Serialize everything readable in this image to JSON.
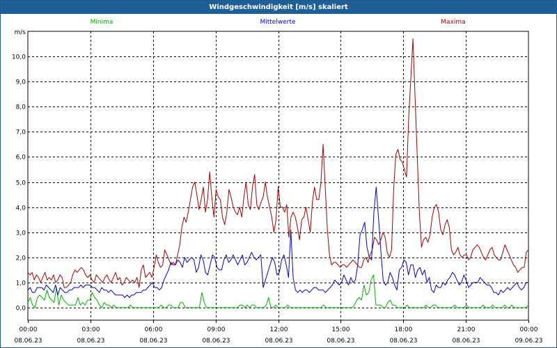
{
  "window": {
    "title": "Windgeschwindigkeit [m/s] skaliert"
  },
  "colors": {
    "title_bg": "#1f5f96",
    "minima": "#00b000",
    "mittelwerte": "#0000c8",
    "maxima": "#a00000",
    "grid": "#000000"
  },
  "chart_data": {
    "type": "line",
    "title": "Windgeschwindigkeit [m/s] skaliert",
    "ylabel": "m/s",
    "xlabel": "",
    "ylim": [
      -0.5,
      11.0
    ],
    "xlim": [
      0,
      24
    ],
    "grid": true,
    "yticks": [
      {
        "value": 0.0,
        "label": "0,0"
      },
      {
        "value": 1.0,
        "label": "1,0"
      },
      {
        "value": 2.0,
        "label": "2,0"
      },
      {
        "value": 3.0,
        "label": "3,0"
      },
      {
        "value": 4.0,
        "label": "4,0"
      },
      {
        "value": 5.0,
        "label": "5,0"
      },
      {
        "value": 6.0,
        "label": "6,0"
      },
      {
        "value": 7.0,
        "label": "7,0"
      },
      {
        "value": 8.0,
        "label": "8,0"
      },
      {
        "value": 9.0,
        "label": "9,0"
      },
      {
        "value": 10.0,
        "label": "10,0"
      }
    ],
    "xticks": [
      {
        "value": 0,
        "time": "00:00",
        "date": "08.06.23"
      },
      {
        "value": 3,
        "time": "03:00",
        "date": "08.06.23"
      },
      {
        "value": 6,
        "time": "06:00",
        "date": "08.06.23"
      },
      {
        "value": 9,
        "time": "09:00",
        "date": "08.06.23"
      },
      {
        "value": 12,
        "time": "12:00",
        "date": "08.06.23"
      },
      {
        "value": 15,
        "time": "15:00",
        "date": "08.06.23"
      },
      {
        "value": 18,
        "time": "18:00",
        "date": "08.06.23"
      },
      {
        "value": 21,
        "time": "21:00",
        "date": "08.06.23"
      },
      {
        "value": 24,
        "time": "00:00",
        "date": "09.06.23"
      }
    ],
    "series": [
      {
        "name": "Minima",
        "color": "#00b000",
        "legend_position": "top-left",
        "values": [
          0.2,
          0.4,
          0.1,
          0.0,
          0.4,
          0.5,
          0.4,
          0.3,
          0.7,
          0.4,
          0.3,
          0.2,
          0.8,
          0.1,
          0.5,
          0.3,
          0.2,
          0.1,
          0.1,
          0.1,
          0.1,
          0.4,
          0.1,
          0.2,
          0.1,
          0.3,
          0.3,
          0.6,
          0.4,
          0.3,
          0.1,
          0.0,
          0.2,
          0.1,
          0.1,
          0.0,
          0.1,
          0.0,
          0.0,
          0.0,
          0.0,
          0.0,
          0.0,
          0.1,
          0.0,
          0.0,
          0.0,
          0.0,
          0.0,
          0.0,
          0.0,
          0.0,
          0.0,
          0.0,
          0.0,
          0.0,
          0.1,
          0.0,
          0.0,
          0.1,
          0.1,
          0.0,
          0.0,
          0.0,
          0.2,
          0.2,
          0.0,
          0.0,
          0.0,
          0.0,
          0.0,
          0.0,
          0.0,
          0.6,
          0.2,
          0.0,
          0.0,
          0.0,
          0.0,
          0.0,
          0.0,
          0.0,
          0.0,
          0.0,
          0.0,
          0.0,
          0.0,
          0.0,
          0.0,
          0.1,
          0.1,
          0.0,
          0.1,
          0.0,
          0.1,
          0.1,
          0.0,
          0.0,
          0.0,
          0.0,
          0.1,
          0.4,
          0.0,
          0.0,
          0.1,
          0.0,
          0.0,
          0.0,
          0.0,
          0.1,
          0.0,
          0.0,
          0.0,
          0.0,
          0.0,
          0.0,
          0.0,
          0.0,
          0.0,
          0.0,
          0.0,
          0.0,
          0.0,
          0.0,
          0.1,
          0.0,
          0.0,
          0.0,
          0.0,
          0.0,
          0.0,
          0.0,
          0.0,
          0.0,
          0.0,
          0.0,
          0.0,
          0.1,
          0.3,
          0.4,
          0.3,
          0.9,
          0.5,
          0.6,
          1.1,
          1.3,
          0.1,
          0.1,
          0.1,
          0.0,
          0.0,
          0.2,
          0.3,
          0.1,
          0.1,
          0.0,
          0.0,
          0.0,
          0.0,
          0.1,
          0.0,
          0.0,
          0.0,
          0.0,
          0.0,
          0.0,
          0.0,
          0.1,
          0.0,
          0.0,
          0.1,
          0.1,
          0.0,
          0.0,
          0.0,
          0.0,
          0.0,
          0.0,
          0.0,
          0.1,
          0.0,
          0.0,
          0.0,
          0.0,
          0.1,
          0.0,
          0.0,
          0.0,
          0.0,
          0.0,
          0.0,
          0.1,
          0.0,
          0.0,
          0.0,
          0.1,
          0.0,
          0.0,
          0.0,
          0.0,
          0.1,
          0.0,
          0.0,
          0.1,
          0.0,
          0.0,
          0.0,
          0.0,
          0.0,
          0.0,
          0.1
        ]
      },
      {
        "name": "Mittelwerte",
        "color": "#0000c8",
        "legend_position": "top-center",
        "values": [
          0.7,
          0.8,
          0.6,
          0.6,
          0.8,
          0.8,
          0.8,
          0.7,
          0.9,
          0.8,
          0.7,
          0.6,
          0.9,
          0.5,
          0.8,
          0.7,
          0.6,
          0.6,
          0.7,
          0.7,
          0.8,
          0.8,
          0.8,
          0.9,
          0.8,
          0.9,
          0.9,
          0.9,
          0.8,
          0.8,
          0.7,
          0.6,
          0.8,
          0.7,
          0.7,
          0.6,
          0.7,
          0.6,
          0.5,
          0.5,
          0.5,
          0.5,
          0.4,
          0.5,
          0.4,
          0.5,
          0.5,
          0.6,
          0.6,
          0.6,
          0.7,
          0.7,
          0.8,
          0.9,
          1.0,
          0.8,
          0.8,
          0.7,
          0.8,
          1.1,
          1.3,
          1.5,
          1.8,
          1.7,
          1.7,
          1.9,
          1.8,
          1.6,
          2.0,
          1.8,
          1.9,
          2.0,
          1.9,
          1.4,
          1.6,
          2.1,
          1.9,
          1.4,
          1.3,
          1.7,
          2.1,
          2.0,
          1.6,
          1.5,
          1.5,
          1.9,
          2.1,
          1.8,
          1.9,
          2.1,
          1.9,
          1.7,
          1.9,
          2.1,
          1.7,
          1.8,
          2.0,
          2.2,
          2.0,
          1.9,
          2.0,
          2.1,
          0.8,
          1.1,
          1.4,
          1.7,
          2.0,
          1.8,
          1.3,
          1.4,
          1.9,
          2.1,
          1.7,
          1.2,
          3.1,
          1.2,
          0.7,
          0.6,
          0.7,
          0.6,
          0.7,
          0.7,
          0.6,
          0.7,
          0.8,
          0.8,
          0.7,
          0.7,
          0.7,
          0.6,
          0.7,
          0.8,
          0.9,
          1.1,
          1.0,
          0.9,
          1.0,
          1.3,
          1.1,
          0.9,
          1.2,
          1.0,
          1.1,
          1.7,
          2.9,
          3.1,
          3.4,
          2.4,
          2.0,
          1.9,
          3.8,
          4.8,
          3.6,
          2.3,
          1.1,
          0.9,
          1.0,
          1.4,
          1.2,
          0.9,
          0.7,
          1.5,
          1.6,
          1.9,
          1.8,
          1.3,
          1.7,
          1.7,
          1.2,
          1.5,
          1.6,
          1.3,
          1.5,
          1.0,
          1.2,
          0.7,
          0.6,
          0.9,
          0.8,
          0.8,
          1.0,
          0.9,
          1.1,
          1.2,
          1.4,
          1.3,
          1.1,
          0.9,
          1.0,
          1.3,
          1.1,
          0.8,
          0.9,
          1.0,
          1.0,
          1.0,
          1.2,
          1.1,
          1.0,
          0.9,
          0.9,
          0.8,
          0.6,
          0.6,
          0.5,
          0.7,
          0.6,
          0.7,
          0.8,
          0.7,
          0.8,
          0.9,
          1.0,
          0.8,
          0.7,
          0.8,
          1.0,
          1.0
        ]
      },
      {
        "name": "Maxima",
        "color": "#a00000",
        "legend_position": "top-right",
        "values": [
          1.4,
          1.3,
          1.4,
          1.1,
          1.3,
          1.2,
          1.0,
          1.2,
          1.4,
          1.1,
          1.2,
          1.1,
          1.3,
          1.0,
          1.1,
          1.3,
          1.2,
          0.8,
          0.8,
          0.9,
          1.0,
          1.3,
          1.5,
          1.4,
          1.5,
          1.6,
          1.5,
          1.3,
          1.2,
          1.3,
          1.1,
          1.0,
          1.3,
          1.2,
          1.1,
          1.0,
          1.2,
          1.3,
          1.1,
          1.0,
          1.2,
          1.4,
          1.1,
          1.2,
          0.9,
          1.0,
          1.2,
          1.1,
          1.0,
          1.1,
          1.0,
          1.2,
          0.8,
          1.5,
          1.7,
          1.2,
          1.3,
          1.4,
          1.2,
          1.6,
          2.1,
          1.8,
          1.6,
          1.7,
          2.3,
          2.1,
          1.9,
          1.7,
          1.8,
          1.7,
          2.1,
          2.5,
          3.2,
          3.6,
          3.4,
          3.8,
          4.3,
          4.8,
          5.0,
          4.5,
          3.9,
          4.3,
          4.8,
          3.8,
          4.3,
          5.4,
          4.4,
          3.6,
          4.7,
          4.4,
          4.3,
          3.6,
          3.3,
          3.8,
          4.7,
          4.4,
          4.0,
          3.8,
          3.7,
          4.0,
          3.6,
          4.4,
          5.0,
          4.1,
          3.9,
          4.8,
          5.3,
          4.1,
          3.9,
          4.2,
          4.4,
          5.0,
          4.4,
          4.0,
          3.6,
          3.0,
          3.5,
          4.8,
          4.0,
          4.0,
          3.8,
          4.1,
          2.8,
          3.6,
          3.8,
          3.6,
          3.2,
          2.7,
          3.5,
          3.6,
          4.0,
          3.5,
          3.0,
          4.2,
          4.8,
          4.3,
          4.3,
          5.0,
          6.5,
          4.8,
          3.1,
          2.1,
          1.7,
          1.8,
          1.8,
          1.7,
          1.6,
          1.7,
          1.7,
          1.6,
          1.7,
          1.8,
          1.9,
          1.8,
          1.7,
          1.6,
          1.6,
          1.9,
          2.0,
          1.8,
          2.1,
          2.3,
          2.8,
          2.7,
          2.5,
          2.7,
          3.0,
          2.8,
          2.2,
          2.0,
          2.3,
          4.7,
          6.1,
          6.3,
          5.9,
          5.8,
          5.5,
          5.2,
          7.5,
          9.1,
          10.7,
          8.4,
          6.1,
          3.8,
          2.4,
          2.7,
          2.8,
          2.6,
          2.9,
          3.6,
          4.0,
          4.1,
          3.8,
          3.1,
          2.9,
          3.3,
          3.5,
          3.2,
          2.3,
          2.1,
          2.2,
          2.4,
          2.1,
          2.0,
          2.1,
          2.1,
          1.9,
          2.0,
          2.3,
          2.4,
          2.5,
          2.4,
          2.2,
          2.0,
          1.9,
          2.1,
          2.3,
          2.4,
          2.1,
          2.0,
          1.9,
          1.9,
          2.2,
          2.5,
          2.3,
          2.1,
          1.9,
          1.7,
          1.6,
          1.4,
          1.5,
          1.6,
          1.6,
          2.2,
          2.3
        ]
      }
    ]
  }
}
